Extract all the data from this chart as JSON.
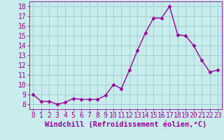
{
  "x": [
    0,
    1,
    2,
    3,
    4,
    5,
    6,
    7,
    8,
    9,
    10,
    11,
    12,
    13,
    14,
    15,
    16,
    17,
    18,
    19,
    20,
    21,
    22,
    23
  ],
  "y": [
    9.0,
    8.3,
    8.3,
    8.0,
    8.2,
    8.6,
    8.5,
    8.5,
    8.5,
    8.9,
    10.0,
    9.6,
    11.5,
    13.5,
    15.3,
    16.8,
    16.8,
    18.0,
    15.1,
    15.0,
    14.0,
    12.5,
    11.3,
    11.5
  ],
  "line_color": "#990099",
  "marker": "D",
  "marker_size": 2.5,
  "line_width": 1.0,
  "bg_color": "#c8ecec",
  "grid_color": "#a0d0d0",
  "axis_color": "#990099",
  "xlabel": "Windchill (Refroidissement éolien,°C)",
  "xlabel_fontsize": 7.5,
  "tick_fontsize": 7,
  "ylim": [
    7.5,
    18.5
  ],
  "xlim": [
    -0.5,
    23.5
  ],
  "yticks": [
    8,
    9,
    10,
    11,
    12,
    13,
    14,
    15,
    16,
    17,
    18
  ],
  "xticks": [
    0,
    1,
    2,
    3,
    4,
    5,
    6,
    7,
    8,
    9,
    10,
    11,
    12,
    13,
    14,
    15,
    16,
    17,
    18,
    19,
    20,
    21,
    22,
    23
  ]
}
